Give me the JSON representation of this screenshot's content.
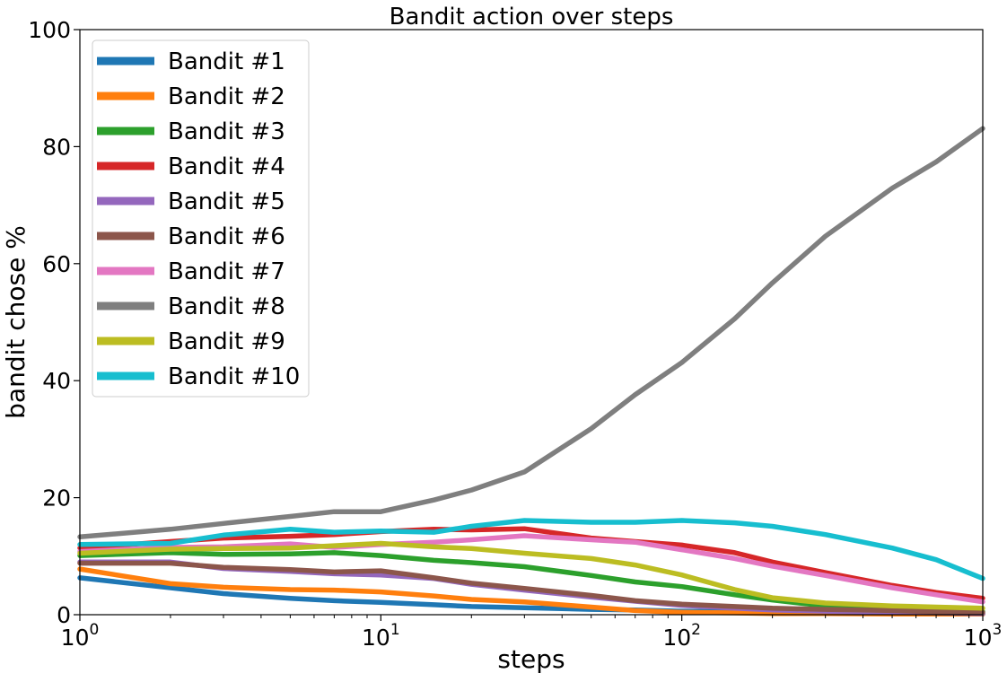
{
  "chart_data": {
    "type": "line",
    "title": "Bandit action over steps",
    "xlabel": "steps",
    "ylabel": "bandit chose %",
    "xscale": "log",
    "xlim": [
      1,
      1000
    ],
    "ylim": [
      0,
      100
    ],
    "grid": false,
    "legend_position": "top-left",
    "x_ticks": [
      {
        "value": 1,
        "base": "10",
        "exp": "0"
      },
      {
        "value": 10,
        "base": "10",
        "exp": "1"
      },
      {
        "value": 100,
        "base": "10",
        "exp": "2"
      },
      {
        "value": 1000,
        "base": "10",
        "exp": "3"
      }
    ],
    "y_ticks": [
      {
        "value": 0,
        "label": "0"
      },
      {
        "value": 20,
        "label": "20"
      },
      {
        "value": 40,
        "label": "40"
      },
      {
        "value": 60,
        "label": "60"
      },
      {
        "value": 80,
        "label": "80"
      },
      {
        "value": 100,
        "label": "100"
      }
    ],
    "x": [
      1,
      2,
      3,
      5,
      7,
      10,
      15,
      20,
      30,
      50,
      70,
      100,
      150,
      200,
      300,
      500,
      700,
      1000
    ],
    "series": [
      {
        "name": "Bandit #1",
        "color": "#1f77b4",
        "values": [
          6.3,
          4.6,
          3.6,
          2.8,
          2.4,
          2.1,
          1.7,
          1.4,
          1.2,
          0.9,
          0.8,
          0.6,
          0.5,
          0.4,
          0.3,
          0.2,
          0.2,
          0.1
        ]
      },
      {
        "name": "Bandit #2",
        "color": "#ff7f0e",
        "values": [
          7.8,
          5.3,
          4.7,
          4.3,
          4.2,
          3.9,
          3.2,
          2.6,
          2.2,
          1.3,
          0.7,
          0.4,
          0.3,
          0.2,
          0.2,
          0.1,
          0.1,
          0.1
        ]
      },
      {
        "name": "Bandit #3",
        "color": "#2ca02c",
        "values": [
          10.1,
          10.6,
          10.3,
          10.4,
          10.6,
          10.1,
          9.3,
          8.9,
          8.2,
          6.7,
          5.6,
          4.8,
          3.4,
          2.5,
          1.5,
          0.9,
          0.7,
          0.5
        ]
      },
      {
        "name": "Bandit #4",
        "color": "#d62728",
        "values": [
          11.4,
          12.5,
          13.1,
          13.4,
          13.7,
          14.2,
          14.6,
          14.5,
          14.7,
          13.1,
          12.5,
          11.9,
          10.6,
          9.0,
          7.2,
          5.0,
          3.8,
          2.8
        ]
      },
      {
        "name": "Bandit #5",
        "color": "#9467bd",
        "values": [
          9.0,
          9.0,
          7.9,
          7.4,
          7.0,
          6.8,
          6.2,
          5.2,
          4.2,
          3.0,
          2.3,
          1.6,
          1.1,
          0.8,
          0.6,
          0.4,
          0.3,
          0.2
        ]
      },
      {
        "name": "Bandit #6",
        "color": "#8c564b",
        "values": [
          8.8,
          8.8,
          8.1,
          7.7,
          7.3,
          7.5,
          6.3,
          5.4,
          4.5,
          3.3,
          2.4,
          1.8,
          1.4,
          1.1,
          0.9,
          0.7,
          0.5,
          0.4
        ]
      },
      {
        "name": "Bandit #7",
        "color": "#e377c2",
        "values": [
          10.8,
          11.5,
          11.6,
          12.1,
          11.5,
          12.0,
          12.4,
          12.8,
          13.5,
          12.8,
          12.4,
          11.1,
          9.6,
          8.3,
          6.7,
          4.6,
          3.4,
          2.2
        ]
      },
      {
        "name": "Bandit #8",
        "color": "#7f7f7f",
        "values": [
          13.3,
          14.6,
          15.6,
          16.8,
          17.6,
          17.6,
          19.6,
          21.3,
          24.4,
          31.8,
          37.6,
          43.1,
          50.6,
          56.7,
          64.7,
          72.9,
          77.4,
          83.1
        ]
      },
      {
        "name": "Bandit #9",
        "color": "#bcbd22",
        "values": [
          10.5,
          11.2,
          11.3,
          11.4,
          11.8,
          12.2,
          11.6,
          11.3,
          10.5,
          9.6,
          8.5,
          6.8,
          4.3,
          2.9,
          2.0,
          1.5,
          1.3,
          1.1
        ]
      },
      {
        "name": "Bandit #10",
        "color": "#17becf",
        "values": [
          12.0,
          12.2,
          13.6,
          14.6,
          14.1,
          14.3,
          14.1,
          15.1,
          16.1,
          15.8,
          15.8,
          16.1,
          15.7,
          15.1,
          13.7,
          11.4,
          9.4,
          6.2
        ]
      }
    ]
  }
}
